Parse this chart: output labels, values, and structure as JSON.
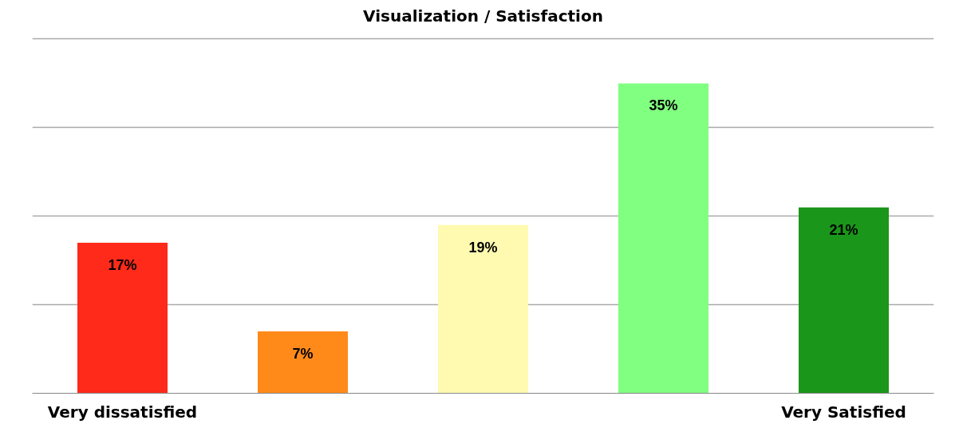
{
  "chart_data": {
    "type": "bar",
    "title": "Visualization / Satisfaction",
    "categories": [
      "Very dissatisfied",
      null,
      null,
      null,
      "Very Satisfied"
    ],
    "values": [
      17,
      7,
      19,
      35,
      21
    ],
    "value_labels": [
      "17%",
      "7%",
      "19%",
      "35%",
      "21%"
    ],
    "colors": [
      "#ff2a1a",
      "#ff8a1a",
      "#fffab0",
      "#80ff80",
      "#1a961a"
    ],
    "tick_labels": "x",
    "grid": "y"
  }
}
